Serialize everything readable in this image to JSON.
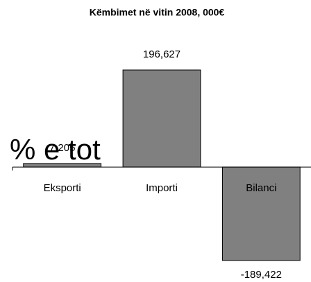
{
  "chart_data": {
    "type": "bar",
    "title": "Këmbimet në vitin 2008, 000€",
    "categories": [
      "Eksporti",
      "Importi",
      "Bilanci"
    ],
    "values": [
      7205,
      196627,
      -189422
    ],
    "value_labels": [
      "7,205",
      "196,627",
      "-189,422"
    ],
    "color": "#808080",
    "annotation": "% e tot"
  }
}
